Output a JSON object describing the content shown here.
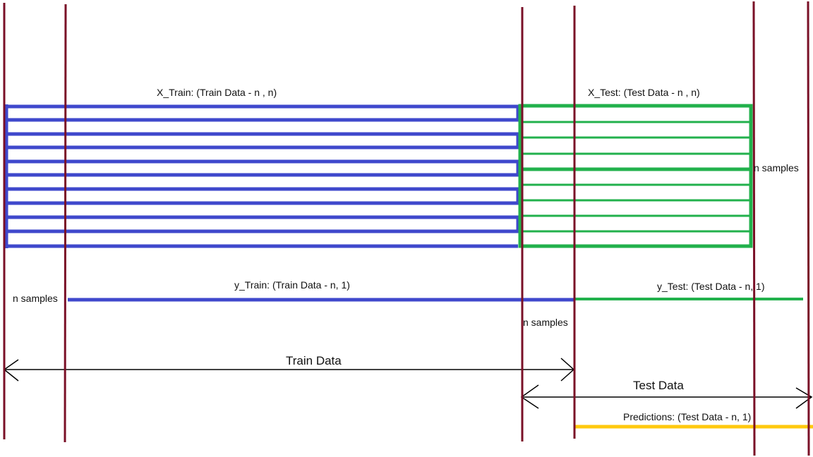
{
  "labels": {
    "x_train": "X_Train: (Train Data - n , n)",
    "x_test": "X_Test: (Test Data - n , n)",
    "n_samples_right": "n samples",
    "n_samples_left": "n samples",
    "y_train": "y_Train: (Train Data - n, 1)",
    "y_test": "y_Test: (Test Data - n, 1)",
    "n_samples_mid": "n samples",
    "train_data": "Train Data",
    "test_data": "Test Data",
    "predictions": "Predictions: (Test Data - n, 1)"
  },
  "colors": {
    "train": "#3f48cc",
    "test": "#22b14c",
    "predictions": "#ffc90e",
    "boundary": "#7a1027",
    "arrow": "#000000"
  }
}
